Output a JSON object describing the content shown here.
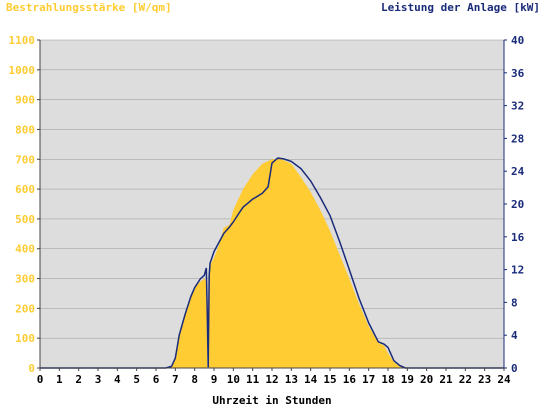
{
  "chart_data": {
    "type": "area",
    "title_left": "Bestrahlungsstärke [W/qm]",
    "title_right": "Leistung der Anlage [kW]",
    "xlabel": "Uhrzeit in Stunden",
    "xlim": [
      0,
      24
    ],
    "x_ticks": [
      "0",
      "1",
      "2",
      "3",
      "4",
      "5",
      "6",
      "7",
      "8",
      "9",
      "10",
      "11",
      "12",
      "13",
      "14",
      "15",
      "16",
      "17",
      "18",
      "19",
      "20",
      "21",
      "22",
      "23",
      "24"
    ],
    "y_left": {
      "lim": [
        0,
        1100
      ],
      "ticks": [
        "0",
        "100",
        "200",
        "300",
        "400",
        "500",
        "600",
        "700",
        "800",
        "900",
        "1000",
        "1100"
      ]
    },
    "y_right": {
      "lim": [
        0,
        40
      ],
      "ticks": [
        "0",
        "4",
        "8",
        "12",
        "16",
        "20",
        "24",
        "28",
        "32",
        "36",
        "40"
      ]
    },
    "colors": {
      "irradiance_fill": "#ffcc33",
      "power_line": "#1a2b7a",
      "plot_bg": "#dddddd",
      "grid": "#999999"
    },
    "series": [
      {
        "name": "Bestrahlungsstärke [W/qm]",
        "axis": "left",
        "x": [
          0,
          6.5,
          6.8,
          7.0,
          7.2,
          7.5,
          7.8,
          8.0,
          8.3,
          8.5,
          8.6,
          8.65,
          8.7,
          8.75,
          8.8,
          9.0,
          9.3,
          9.5,
          9.8,
          10.0,
          10.5,
          11.0,
          11.5,
          12.0,
          12.5,
          13.0,
          13.5,
          14.0,
          14.5,
          15.0,
          15.5,
          16.0,
          16.5,
          17.0,
          17.5,
          17.8,
          18.0,
          18.3,
          18.6,
          18.9,
          24
        ],
        "y": [
          0,
          0,
          5,
          30,
          110,
          180,
          240,
          270,
          290,
          300,
          290,
          0,
          0,
          330,
          345,
          370,
          420,
          470,
          480,
          530,
          600,
          650,
          685,
          700,
          700,
          685,
          640,
          590,
          530,
          460,
          380,
          300,
          215,
          140,
          85,
          75,
          50,
          20,
          5,
          0,
          0
        ]
      },
      {
        "name": "Leistung der Anlage [kW]",
        "axis": "right",
        "x": [
          0,
          6.5,
          6.8,
          7.0,
          7.2,
          7.5,
          7.8,
          8.0,
          8.3,
          8.5,
          8.6,
          8.65,
          8.7,
          8.75,
          8.8,
          9.0,
          9.3,
          9.5,
          9.8,
          10.0,
          10.3,
          10.5,
          11.0,
          11.5,
          11.8,
          12.0,
          12.3,
          12.6,
          13.0,
          13.5,
          14.0,
          14.5,
          15.0,
          15.5,
          16.0,
          16.5,
          17.0,
          17.5,
          17.8,
          18.0,
          18.3,
          18.6,
          18.9,
          24
        ],
        "y": [
          0,
          0,
          0.2,
          1.2,
          4,
          6.5,
          8.7,
          9.8,
          10.9,
          11.3,
          12.2,
          7,
          0.1,
          11.3,
          12.8,
          14.2,
          15.5,
          16.4,
          17.2,
          17.8,
          18.9,
          19.6,
          20.6,
          21.3,
          22.1,
          25,
          25.6,
          25.5,
          25.2,
          24.3,
          22.8,
          20.8,
          18.6,
          15.4,
          12,
          8.5,
          5.5,
          3.2,
          2.9,
          2.5,
          0.9,
          0.3,
          0,
          0
        ]
      }
    ]
  }
}
